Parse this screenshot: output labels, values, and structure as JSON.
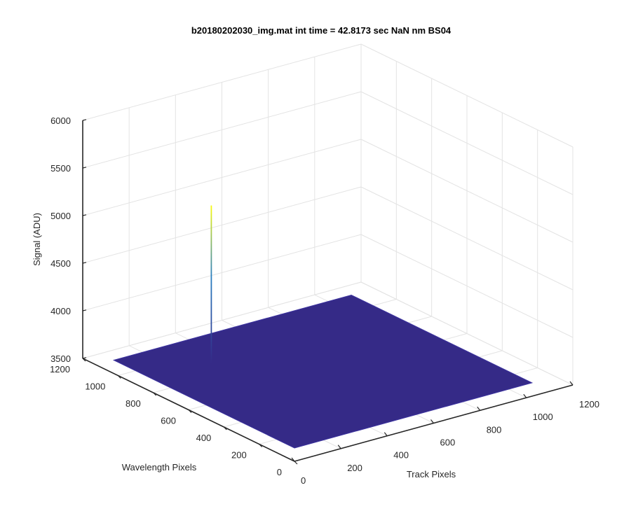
{
  "chart_data": {
    "type": "surface",
    "title": "b20180202030_img.mat int time = 42.8173 sec  NaN nm BS04",
    "xlabel": "Track Pixels",
    "ylabel": "Wavelength Pixels",
    "zlabel": "Signal (ADU)",
    "xlim": [
      0,
      1200
    ],
    "ylim": [
      0,
      1200
    ],
    "zlim": [
      3500,
      6000
    ],
    "x_ticks": [
      0,
      200,
      400,
      600,
      800,
      1000,
      1200
    ],
    "y_ticks": [
      0,
      200,
      400,
      600,
      800,
      1000,
      1200
    ],
    "z_ticks": [
      3500,
      4000,
      4500,
      5000,
      5500,
      6000
    ],
    "x_ticks_text": [
      "0",
      "200",
      "400",
      "600",
      "800",
      "1000",
      "1200"
    ],
    "y_ticks_text": [
      "0",
      "200",
      "400",
      "600",
      "800",
      "1000",
      "1200"
    ],
    "z_ticks_text": [
      "3500",
      "4000",
      "4500",
      "5000",
      "5500",
      "6000"
    ],
    "surface": {
      "x_range": [
        0,
        1024
      ],
      "y_range": [
        0,
        1024
      ],
      "baseline_signal": 3640,
      "noise_amplitude": 15
    },
    "spike": {
      "x": 250,
      "y": 800,
      "peak": 5300
    },
    "grid": true,
    "colors": {
      "surface": "#352a87",
      "surface_edge": "#3d34a0",
      "spike_mid": "#2a7fc1",
      "spike_top": "#f9fb0e",
      "grid": "#e3e3e3",
      "axis": "#262626"
    }
  }
}
